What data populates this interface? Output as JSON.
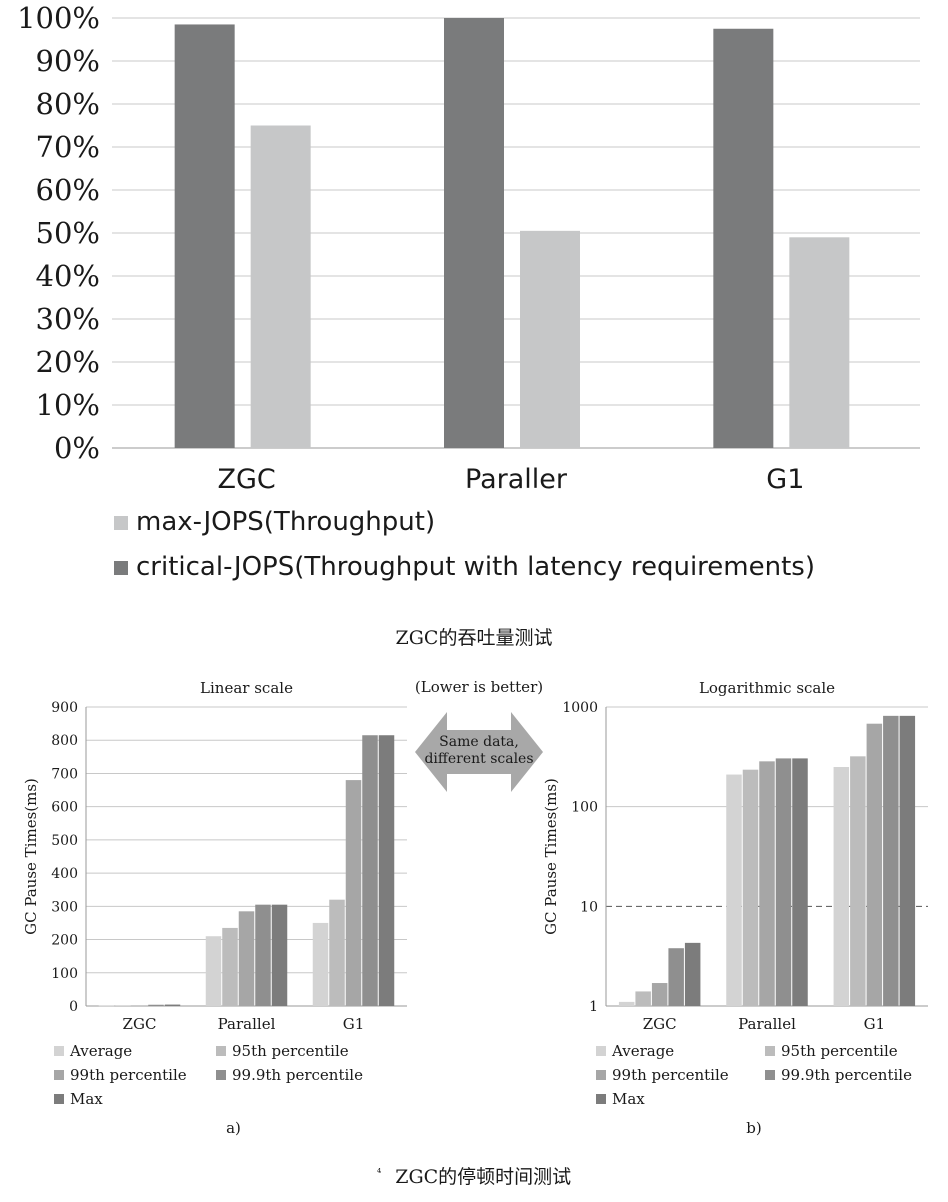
{
  "chart_data": [
    {
      "type": "bar",
      "categories": [
        "ZGC",
        "Paraller",
        "G1"
      ],
      "series": [
        {
          "name": "critical-JOPS(Throughput with latency requirements)",
          "values": [
            98.5,
            100,
            97.5
          ]
        },
        {
          "name": "max-JOPS(Throughput)",
          "values": [
            75,
            50.5,
            49
          ]
        }
      ],
      "ylim": [
        0,
        100
      ],
      "yticks": [
        "0%",
        "10%",
        "20%",
        "30%",
        "40%",
        "50%",
        "60%",
        "70%",
        "80%",
        "90%",
        "100%"
      ],
      "grid": true,
      "legend_position": "bottom",
      "legend_order": [
        1,
        0
      ],
      "caption": "ZGC的吞吐量测试",
      "colors": [
        "#7a7b7c",
        "#c6c7c8"
      ]
    },
    {
      "type": "bar",
      "title": "Linear scale",
      "ylabel": "GC Pause Times(ms)",
      "categories": [
        "ZGC",
        "Parallel",
        "G1"
      ],
      "series": [
        {
          "name": "Average",
          "values": [
            1.1,
            210,
            250
          ]
        },
        {
          "name": "95th percentile",
          "values": [
            1.4,
            235,
            320
          ]
        },
        {
          "name": "99th percentile",
          "values": [
            1.7,
            285,
            680
          ]
        },
        {
          "name": "99.9th percentile",
          "values": [
            3.8,
            305,
            815
          ]
        },
        {
          "name": "Max",
          "values": [
            4.3,
            305,
            815
          ]
        }
      ],
      "ylim": [
        0,
        900
      ],
      "yticks": [
        "0",
        "100",
        "200",
        "300",
        "400",
        "500",
        "600",
        "700",
        "800",
        "900"
      ],
      "grid": true,
      "legend_position": "bottom",
      "sublabel": "a)",
      "colors": [
        "#d3d3d3",
        "#bcbcbc",
        "#a6a6a6",
        "#8f8f8f",
        "#7c7c7c"
      ]
    },
    {
      "type": "bar",
      "title": "Logarithmic scale",
      "ylabel": "GC Pause Times(ms)",
      "yscale": "log",
      "categories": [
        "ZGC",
        "Parallel",
        "G1"
      ],
      "series": [
        {
          "name": "Average",
          "values": [
            1.1,
            210,
            250
          ]
        },
        {
          "name": "95th percentile",
          "values": [
            1.4,
            235,
            320
          ]
        },
        {
          "name": "99th percentile",
          "values": [
            1.7,
            285,
            680
          ]
        },
        {
          "name": "99.9th percentile",
          "values": [
            3.8,
            305,
            815
          ]
        },
        {
          "name": "Max",
          "values": [
            4.3,
            305,
            815
          ]
        }
      ],
      "ylim": [
        1,
        1000
      ],
      "yticks": [
        "1",
        "10",
        "100",
        "1000"
      ],
      "reference_line": 10,
      "grid": true,
      "legend_position": "bottom",
      "sublabel": "b)",
      "colors": [
        "#d3d3d3",
        "#bcbcbc",
        "#a6a6a6",
        "#8f8f8f",
        "#7c7c7c"
      ]
    }
  ],
  "middle_note": "(Lower is better)",
  "arrow_text": [
    "Same data,",
    "different scales"
  ],
  "caption_bottom_mark": "⁴",
  "caption_bottom": "ZGC的停顿时间测试",
  "colors": {
    "arrow": "#a8a8a8",
    "grid": "#c8c8c8",
    "axis": "#9a9a9a"
  }
}
